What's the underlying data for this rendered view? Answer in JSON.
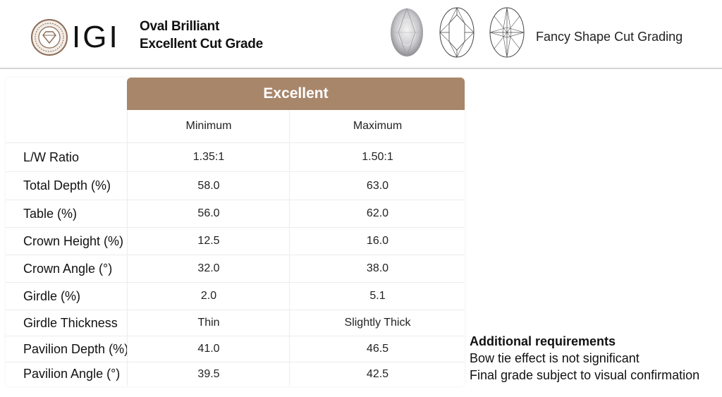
{
  "header": {
    "logo_text": "IGI",
    "title_line1": "Oval Brilliant",
    "title_line2": "Excellent Cut Grade",
    "fancy_label": "Fancy Shape Cut Grading"
  },
  "table": {
    "grade_header": "Excellent",
    "col_min": "Minimum",
    "col_max": "Maximum",
    "rows": [
      {
        "label": "L/W Ratio",
        "min": "1.35:1",
        "max": "1.50:1"
      },
      {
        "label": "Total Depth (%)",
        "min": "58.0",
        "max": "63.0"
      },
      {
        "label": "Table (%)",
        "min": "56.0",
        "max": "62.0"
      },
      {
        "label": "Crown Height (%)",
        "min": "12.5",
        "max": "16.0"
      },
      {
        "label": "Crown Angle (°)",
        "min": "32.0",
        "max": "38.0"
      },
      {
        "label": "Girdle (%)",
        "min": "2.0",
        "max": "5.1"
      },
      {
        "label": "Girdle Thickness",
        "min": "Thin",
        "max": "Slightly Thick"
      },
      {
        "label": "Pavilion Depth (%)",
        "min": "41.0",
        "max": "46.5"
      },
      {
        "label": "Pavilion Angle (°)",
        "min": "39.5",
        "max": "42.5"
      }
    ]
  },
  "notes": {
    "title": "Additional requirements",
    "line1": "Bow tie effect is not significant",
    "line2": "Final grade subject to visual confirmation"
  },
  "colors": {
    "header_accent": "#a8866a",
    "seal_brown": "#8a6a55"
  },
  "icons": [
    "igi-seal-icon",
    "oval-diamond-photo",
    "oval-crown-diagram-icon",
    "oval-pavilion-diagram-icon"
  ]
}
